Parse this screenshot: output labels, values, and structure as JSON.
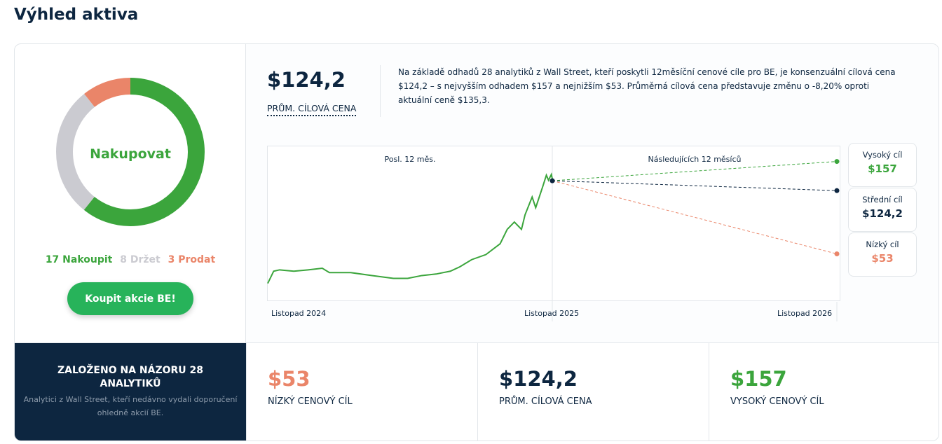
{
  "title": "Výhled aktiva",
  "rating": {
    "label": "Nakupovat",
    "buy": 17,
    "hold": 8,
    "sell": 3,
    "buy_label": "17 Nakoupit",
    "hold_label": "8 Držet",
    "sell_label": "3 Prodat",
    "button": "Koupit akcie BE!"
  },
  "colors": {
    "buy": "#3ba53c",
    "hold": "#cbcbd1",
    "sell": "#ea8569",
    "navy": "#0d2640"
  },
  "summary": {
    "price": "$124,2",
    "label": "PRŮM. CÍLOVÁ CENA",
    "description": "Na základě odhadů 28 analytiků z Wall Street, kteří poskytli 12měsíční cenové cíle pro BE, je konsenzuální cílová cena $124,2 – s nejvyšším odhadem $157 a nejnižším $53. Průměrná cílová cena představuje změnu o -8,20% oproti aktuální ceně $135,3."
  },
  "chart_data": {
    "type": "line",
    "past_label": "Posl. 12 měs.",
    "future_label": "Následujících 12 měsíců",
    "x_ticks": [
      "Listopad 2024",
      "Listopad 2025",
      "Listopad 2026"
    ],
    "ylim": [
      -1,
      174
    ],
    "price_months": [
      0,
      0.25,
      0.5,
      1.1,
      1.7,
      2.3,
      2.6,
      3.5,
      4.4,
      5.3,
      5.9,
      6.5,
      7.1,
      7.7,
      8.1,
      8.6,
      9.2,
      9.8,
      10.1,
      10.4,
      10.7,
      10.85,
      11.15,
      11.3,
      11.45,
      11.6,
      11.75,
      11.84,
      11.96,
      12
    ],
    "price_values": [
      19.7,
      33.5,
      35,
      33.5,
      35,
      36.8,
      31.9,
      31.9,
      28.6,
      25.4,
      25.4,
      28.6,
      30.3,
      33.5,
      38.4,
      46.5,
      52.2,
      64.4,
      80.6,
      88.8,
      80.6,
      96.9,
      117,
      105,
      117,
      129,
      141.6,
      135.9,
      142.4,
      137.5
    ],
    "current": 135.3,
    "targets": [
      {
        "name": "Vysoký cíl",
        "value": 157,
        "label": "$157"
      },
      {
        "name": "Střední cíl",
        "value": 124.2,
        "label": "$124,2"
      },
      {
        "name": "Nízký cíl",
        "value": 53,
        "label": "$53"
      }
    ]
  },
  "analysts": {
    "heading": "ZALOŽENO NA NÁZORU 28 ANALYTIKŮ",
    "sub": "Analytici z Wall Street, kteří nedávno vydali doporučení ohledně akcií BE."
  },
  "stats": [
    {
      "value": "$53",
      "label": "NÍZKÝ CENOVÝ CÍL"
    },
    {
      "value": "$124,2",
      "label": "PRŮM. CÍLOVÁ CENA"
    },
    {
      "value": "$157",
      "label": "VYSOKÝ CENOVÝ CÍL"
    }
  ]
}
